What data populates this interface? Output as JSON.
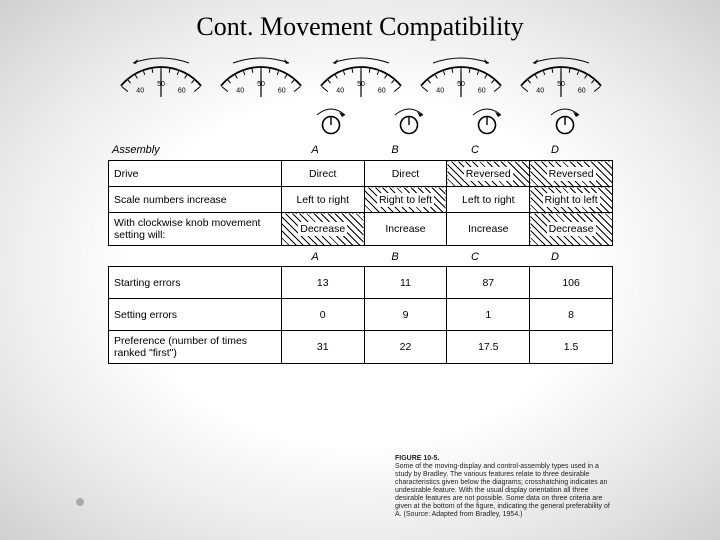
{
  "title": "Cont. Movement Compatibility",
  "assembly_label": "Assembly",
  "columns": [
    "A",
    "B",
    "C",
    "D"
  ],
  "gauge": {
    "labels": [
      "40",
      "50",
      "60"
    ],
    "arrow_dirs": [
      "ccw",
      "cw",
      "ccw",
      "cw",
      "ccw"
    ],
    "stroke": "#000"
  },
  "knob": {
    "arrow_dir": "cw"
  },
  "table1": {
    "rows": [
      {
        "head": "Drive",
        "cells": [
          {
            "v": "Direct",
            "h": false
          },
          {
            "v": "Direct",
            "h": false
          },
          {
            "v": "Reversed",
            "h": true
          },
          {
            "v": "Reversed",
            "h": true
          }
        ]
      },
      {
        "head": "Scale numbers increase",
        "cells": [
          {
            "v": "Left to right",
            "h": false
          },
          {
            "v": "Right to left",
            "h": true
          },
          {
            "v": "Left to right",
            "h": false
          },
          {
            "v": "Right to left",
            "h": true
          }
        ]
      },
      {
        "head": "With clockwise knob movement setting will:",
        "cells": [
          {
            "v": "Decrease",
            "h": true
          },
          {
            "v": "Increase",
            "h": false
          },
          {
            "v": "Increase",
            "h": false
          },
          {
            "v": "Decrease",
            "h": true
          }
        ]
      }
    ]
  },
  "midcols": [
    "A",
    "B",
    "C",
    "D"
  ],
  "table2": {
    "rows": [
      {
        "head": "Starting errors",
        "cells": [
          "13",
          "11",
          "87",
          "106"
        ]
      },
      {
        "head": "Setting errors",
        "cells": [
          "0",
          "9",
          "1",
          "8"
        ]
      },
      {
        "head": "Preference (number of times ranked \"first\")",
        "cells": [
          "31",
          "22",
          "17.5",
          "1.5"
        ]
      }
    ]
  },
  "caption": {
    "fig": "FIGURE 10-5.",
    "text": "Some of the moving-display and control-assembly types used in a study by Bradley. The various features relate to three desirable characteristics given below the diagrams; crosshatching indicates an undesirable feature. With the usual display orientation all three desirable features are not possible. Some data on three criteria are given at the bottom of the figure, indicating the general preferability of A. (Source: Adapted from Bradley, 1954.)"
  }
}
